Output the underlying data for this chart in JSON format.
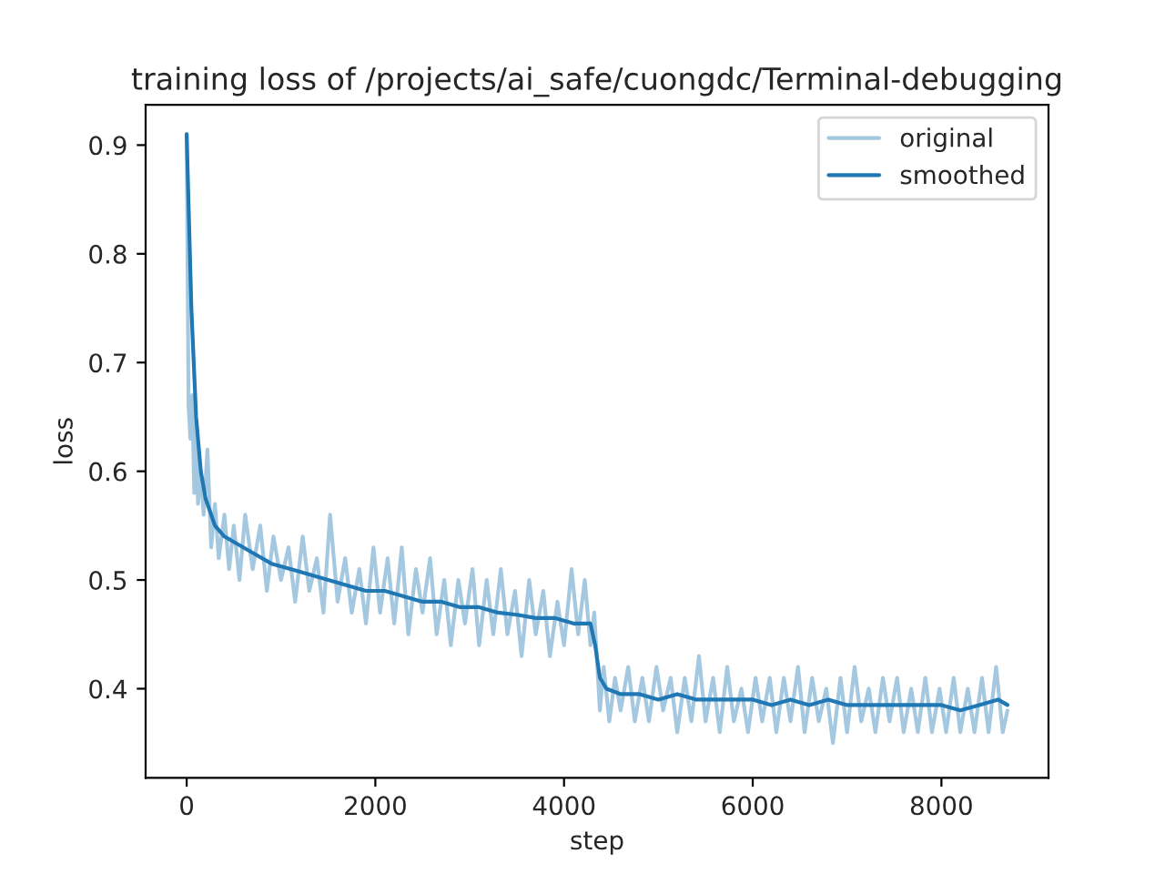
{
  "chart_data": {
    "type": "line",
    "title": "training loss of /projects/ai_safe/cuongdc/Terminal-debugging",
    "xlabel": "step",
    "ylabel": "loss",
    "xlim": [
      -435,
      9135
    ],
    "xticks": [
      0,
      2000,
      4000,
      6000,
      8000
    ],
    "ylim": [
      0.318,
      0.937
    ],
    "yticks": [
      0.4,
      0.5,
      0.6,
      0.7,
      0.8,
      0.9
    ],
    "grid": false,
    "legend": "top right",
    "series": [
      {
        "name": "original",
        "color": "#a5c8e1",
        "x": [
          0,
          20,
          40,
          60,
          80,
          100,
          120,
          150,
          180,
          220,
          260,
          300,
          340,
          400,
          450,
          500,
          560,
          620,
          700,
          780,
          850,
          920,
          1000,
          1080,
          1150,
          1230,
          1300,
          1380,
          1450,
          1520,
          1600,
          1680,
          1750,
          1830,
          1900,
          1980,
          2050,
          2130,
          2200,
          2280,
          2350,
          2430,
          2500,
          2580,
          2650,
          2730,
          2800,
          2880,
          2950,
          3030,
          3100,
          3180,
          3250,
          3330,
          3400,
          3480,
          3550,
          3630,
          3700,
          3780,
          3850,
          3930,
          4000,
          4080,
          4150,
          4220,
          4280,
          4320,
          4380,
          4420,
          4480,
          4540,
          4600,
          4680,
          4750,
          4830,
          4900,
          4980,
          5050,
          5130,
          5200,
          5280,
          5350,
          5430,
          5500,
          5580,
          5650,
          5730,
          5800,
          5880,
          5950,
          6030,
          6100,
          6180,
          6250,
          6330,
          6400,
          6480,
          6550,
          6630,
          6700,
          6780,
          6850,
          6930,
          7000,
          7080,
          7150,
          7230,
          7300,
          7380,
          7450,
          7530,
          7600,
          7680,
          7750,
          7830,
          7900,
          7980,
          8050,
          8130,
          8200,
          8280,
          8350,
          8430,
          8500,
          8580,
          8650,
          8700
        ],
        "values": [
          0.91,
          0.66,
          0.63,
          0.67,
          0.58,
          0.64,
          0.57,
          0.6,
          0.56,
          0.62,
          0.53,
          0.57,
          0.52,
          0.56,
          0.51,
          0.55,
          0.5,
          0.56,
          0.51,
          0.55,
          0.49,
          0.54,
          0.5,
          0.53,
          0.48,
          0.54,
          0.49,
          0.52,
          0.47,
          0.56,
          0.48,
          0.52,
          0.47,
          0.51,
          0.46,
          0.53,
          0.47,
          0.52,
          0.46,
          0.53,
          0.45,
          0.51,
          0.47,
          0.52,
          0.45,
          0.5,
          0.44,
          0.5,
          0.46,
          0.51,
          0.44,
          0.5,
          0.45,
          0.51,
          0.45,
          0.49,
          0.43,
          0.5,
          0.45,
          0.49,
          0.43,
          0.48,
          0.44,
          0.51,
          0.45,
          0.5,
          0.44,
          0.47,
          0.38,
          0.42,
          0.37,
          0.41,
          0.38,
          0.42,
          0.37,
          0.41,
          0.37,
          0.42,
          0.38,
          0.41,
          0.36,
          0.41,
          0.37,
          0.43,
          0.37,
          0.41,
          0.36,
          0.42,
          0.37,
          0.4,
          0.36,
          0.41,
          0.37,
          0.41,
          0.36,
          0.41,
          0.37,
          0.42,
          0.36,
          0.41,
          0.37,
          0.4,
          0.35,
          0.41,
          0.36,
          0.42,
          0.37,
          0.4,
          0.36,
          0.41,
          0.37,
          0.41,
          0.36,
          0.4,
          0.36,
          0.41,
          0.36,
          0.4,
          0.36,
          0.41,
          0.36,
          0.4,
          0.36,
          0.41,
          0.36,
          0.42,
          0.36,
          0.38
        ]
      },
      {
        "name": "smoothed",
        "color": "#1f77b4",
        "x": [
          0,
          50,
          100,
          150,
          200,
          300,
          400,
          500,
          700,
          900,
          1100,
          1300,
          1500,
          1700,
          1900,
          2100,
          2300,
          2500,
          2700,
          2900,
          3100,
          3300,
          3500,
          3700,
          3900,
          4100,
          4280,
          4330,
          4380,
          4450,
          4600,
          4800,
          5000,
          5200,
          5400,
          5600,
          5800,
          6000,
          6200,
          6400,
          6600,
          6800,
          7000,
          7200,
          7400,
          7600,
          7800,
          8000,
          8200,
          8400,
          8600,
          8700
        ],
        "values": [
          0.91,
          0.75,
          0.65,
          0.6,
          0.575,
          0.55,
          0.54,
          0.535,
          0.525,
          0.515,
          0.51,
          0.505,
          0.5,
          0.495,
          0.49,
          0.49,
          0.485,
          0.48,
          0.48,
          0.475,
          0.475,
          0.47,
          0.468,
          0.465,
          0.465,
          0.46,
          0.46,
          0.44,
          0.41,
          0.4,
          0.395,
          0.395,
          0.39,
          0.395,
          0.39,
          0.39,
          0.39,
          0.39,
          0.385,
          0.39,
          0.385,
          0.39,
          0.385,
          0.385,
          0.385,
          0.385,
          0.385,
          0.385,
          0.38,
          0.385,
          0.39,
          0.385
        ]
      }
    ]
  }
}
